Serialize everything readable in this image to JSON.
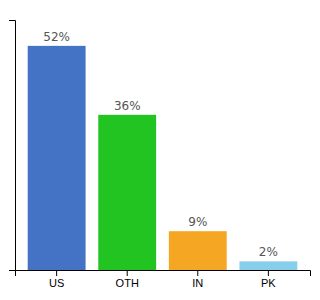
{
  "chart_data": {
    "type": "bar",
    "categories": [
      "US",
      "OTH",
      "IN",
      "PK"
    ],
    "values": [
      52,
      36,
      9,
      2
    ],
    "value_labels": [
      "52%",
      "36%",
      "9%",
      "2%"
    ],
    "colors": [
      "#4472c4",
      "#21c421",
      "#f5a623",
      "#87ceeb"
    ],
    "ylim": [
      0,
      58
    ],
    "data_labels": true,
    "tick_labels": "x",
    "grid": false
  }
}
